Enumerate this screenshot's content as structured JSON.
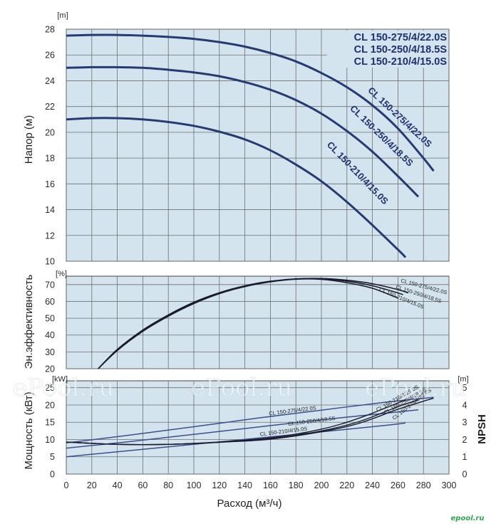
{
  "chart_data": [
    {
      "type": "line",
      "id": "head",
      "ylabel": "Напор (м)",
      "yunit": "[m]",
      "xlim": [
        0,
        300
      ],
      "ylim": [
        10,
        28
      ],
      "yticks": [
        10,
        12,
        14,
        16,
        18,
        20,
        22,
        24,
        26,
        28
      ],
      "grid": true,
      "legend": [
        "CL 150-275/4/22.0S",
        "CL 150-250/4/18.5S",
        "CL 150-210/4/15.0S"
      ],
      "legend_placement": "top-right",
      "series": [
        {
          "name": "CL 150-275/4/22.0S",
          "x": [
            0,
            20,
            40,
            60,
            80,
            100,
            120,
            140,
            160,
            180,
            200,
            220,
            240,
            260,
            280,
            288
          ],
          "y": [
            27.5,
            27.55,
            27.55,
            27.5,
            27.4,
            27.25,
            27.0,
            26.65,
            26.15,
            25.5,
            24.6,
            23.5,
            22.1,
            20.3,
            18.0,
            17.0
          ]
        },
        {
          "name": "CL 150-250/4/18.5S",
          "x": [
            0,
            20,
            40,
            60,
            80,
            100,
            120,
            140,
            160,
            180,
            200,
            220,
            240,
            260,
            276
          ],
          "y": [
            25.0,
            25.05,
            25.05,
            25.0,
            24.85,
            24.65,
            24.35,
            23.9,
            23.3,
            22.5,
            21.45,
            20.1,
            18.5,
            16.6,
            15.0
          ]
        },
        {
          "name": "CL 150-210/4/15.0S",
          "x": [
            0,
            20,
            40,
            60,
            80,
            100,
            120,
            140,
            160,
            180,
            200,
            220,
            240,
            260,
            266
          ],
          "y": [
            21.0,
            21.1,
            21.1,
            21.0,
            20.8,
            20.5,
            20.05,
            19.45,
            18.6,
            17.5,
            16.2,
            14.6,
            12.8,
            10.9,
            10.3
          ]
        }
      ]
    },
    {
      "type": "line",
      "id": "efficiency",
      "ylabel": "Эн.эффективность",
      "yunit": "[%]",
      "xlim": [
        0,
        300
      ],
      "ylim": [
        20,
        75
      ],
      "yticks": [
        20,
        30,
        40,
        50,
        60,
        70
      ],
      "grid": true,
      "series": [
        {
          "name": "CL 150-275/4/22.0S",
          "x": [
            25,
            40,
            60,
            80,
            100,
            120,
            140,
            160,
            180,
            200,
            220,
            240,
            260,
            268
          ],
          "y": [
            20,
            31.5,
            43,
            52,
            59.5,
            65.2,
            69.3,
            72,
            73.4,
            73.6,
            72.6,
            70.5,
            67.0,
            65.0
          ]
        },
        {
          "name": "CL 150-250/4/18.5S",
          "x": [
            25,
            40,
            60,
            80,
            100,
            120,
            140,
            160,
            180,
            200,
            220,
            240,
            260,
            264
          ],
          "y": [
            20,
            31.2,
            42.6,
            51.6,
            59.1,
            64.9,
            69.0,
            71.8,
            73.3,
            73.4,
            72.0,
            69.3,
            65.0,
            64.0
          ]
        },
        {
          "name": "CL 150-210/4/15.0S",
          "x": [
            25,
            40,
            60,
            80,
            100,
            120,
            140,
            160,
            180,
            200,
            220,
            240,
            260
          ],
          "y": [
            20,
            30.8,
            42.2,
            51.2,
            58.7,
            64.6,
            68.8,
            71.6,
            73.2,
            73.1,
            71.1,
            67.8,
            62.0
          ]
        }
      ]
    },
    {
      "type": "line",
      "id": "power_npsh",
      "ylabel": "Мощность (кВт)",
      "yunit": "[kW]",
      "y2label": "NPSH",
      "y2unit": "[m]",
      "xlabel": "Расход (м³/ч)",
      "xlim": [
        0,
        300
      ],
      "xticks": [
        0,
        20,
        40,
        60,
        80,
        100,
        120,
        140,
        160,
        180,
        200,
        220,
        240,
        260,
        280,
        300
      ],
      "ylim": [
        0,
        27
      ],
      "yticks": [
        0,
        5,
        10,
        15,
        20,
        25
      ],
      "y2lim": [
        0,
        5.4
      ],
      "y2ticks": [
        0,
        1,
        2,
        3,
        4,
        5
      ],
      "grid": true,
      "series": [
        {
          "name": "CL 150-275/4/22.0S",
          "axis": "power",
          "x": [
            0,
            50,
            100,
            150,
            200,
            250,
            288
          ],
          "y": [
            9.0,
            11.3,
            13.7,
            16.2,
            18.5,
            20.8,
            22.2
          ]
        },
        {
          "name": "CL 150-250/4/18.5S",
          "axis": "power",
          "x": [
            0,
            50,
            100,
            150,
            200,
            250,
            276
          ],
          "y": [
            7.5,
            9.4,
            11.5,
            13.6,
            15.7,
            17.6,
            18.6
          ]
        },
        {
          "name": "CL 150-210/4/15.0S",
          "axis": "power",
          "x": [
            0,
            50,
            100,
            150,
            200,
            250,
            266
          ],
          "y": [
            5.0,
            6.8,
            8.6,
            10.4,
            12.2,
            14.1,
            14.8
          ]
        },
        {
          "name": "CL 150-275/4/22.0S NPSH",
          "axis": "npsh",
          "x": [
            0,
            40,
            80,
            120,
            160,
            200,
            230,
            260,
            288
          ],
          "y": [
            1.85,
            1.72,
            1.72,
            1.84,
            2.02,
            2.45,
            2.95,
            3.75,
            4.4
          ]
        },
        {
          "name": "CL 150-250/4/18.5S NPSH",
          "axis": "npsh",
          "x": [
            0,
            40,
            80,
            120,
            160,
            200,
            230,
            260,
            276
          ],
          "y": [
            1.85,
            1.72,
            1.72,
            1.84,
            2.05,
            2.5,
            3.05,
            3.9,
            4.3
          ]
        },
        {
          "name": "CL 150-210/4/15.0S NPSH",
          "axis": "npsh",
          "x": [
            0,
            40,
            80,
            120,
            160,
            200,
            230,
            266
          ],
          "y": [
            1.85,
            1.72,
            1.72,
            1.86,
            2.1,
            2.6,
            3.25,
            4.3
          ]
        }
      ]
    }
  ],
  "power_labels": [
    "CL 150-275/4/22.0S",
    "CL 150-250/4/18.5S",
    "CL 150-210/4/15.0S"
  ],
  "npsh_labels": [
    "CL 150-210/4/15.0S",
    "CL 150-250/4/18.5S",
    "CL 150-275/4/22.0S"
  ],
  "watermark": "ePool.ru",
  "logo": "epool.ru",
  "colors": {
    "plot_background": "#d3e4ee",
    "grid": "#6f6f6f",
    "head_curve": "#253a73",
    "thin_curve": "#1b1b2e",
    "power_curve": "#3d4f8c",
    "legend_text": "#1f2f6e",
    "logo": "#2fa84f"
  }
}
